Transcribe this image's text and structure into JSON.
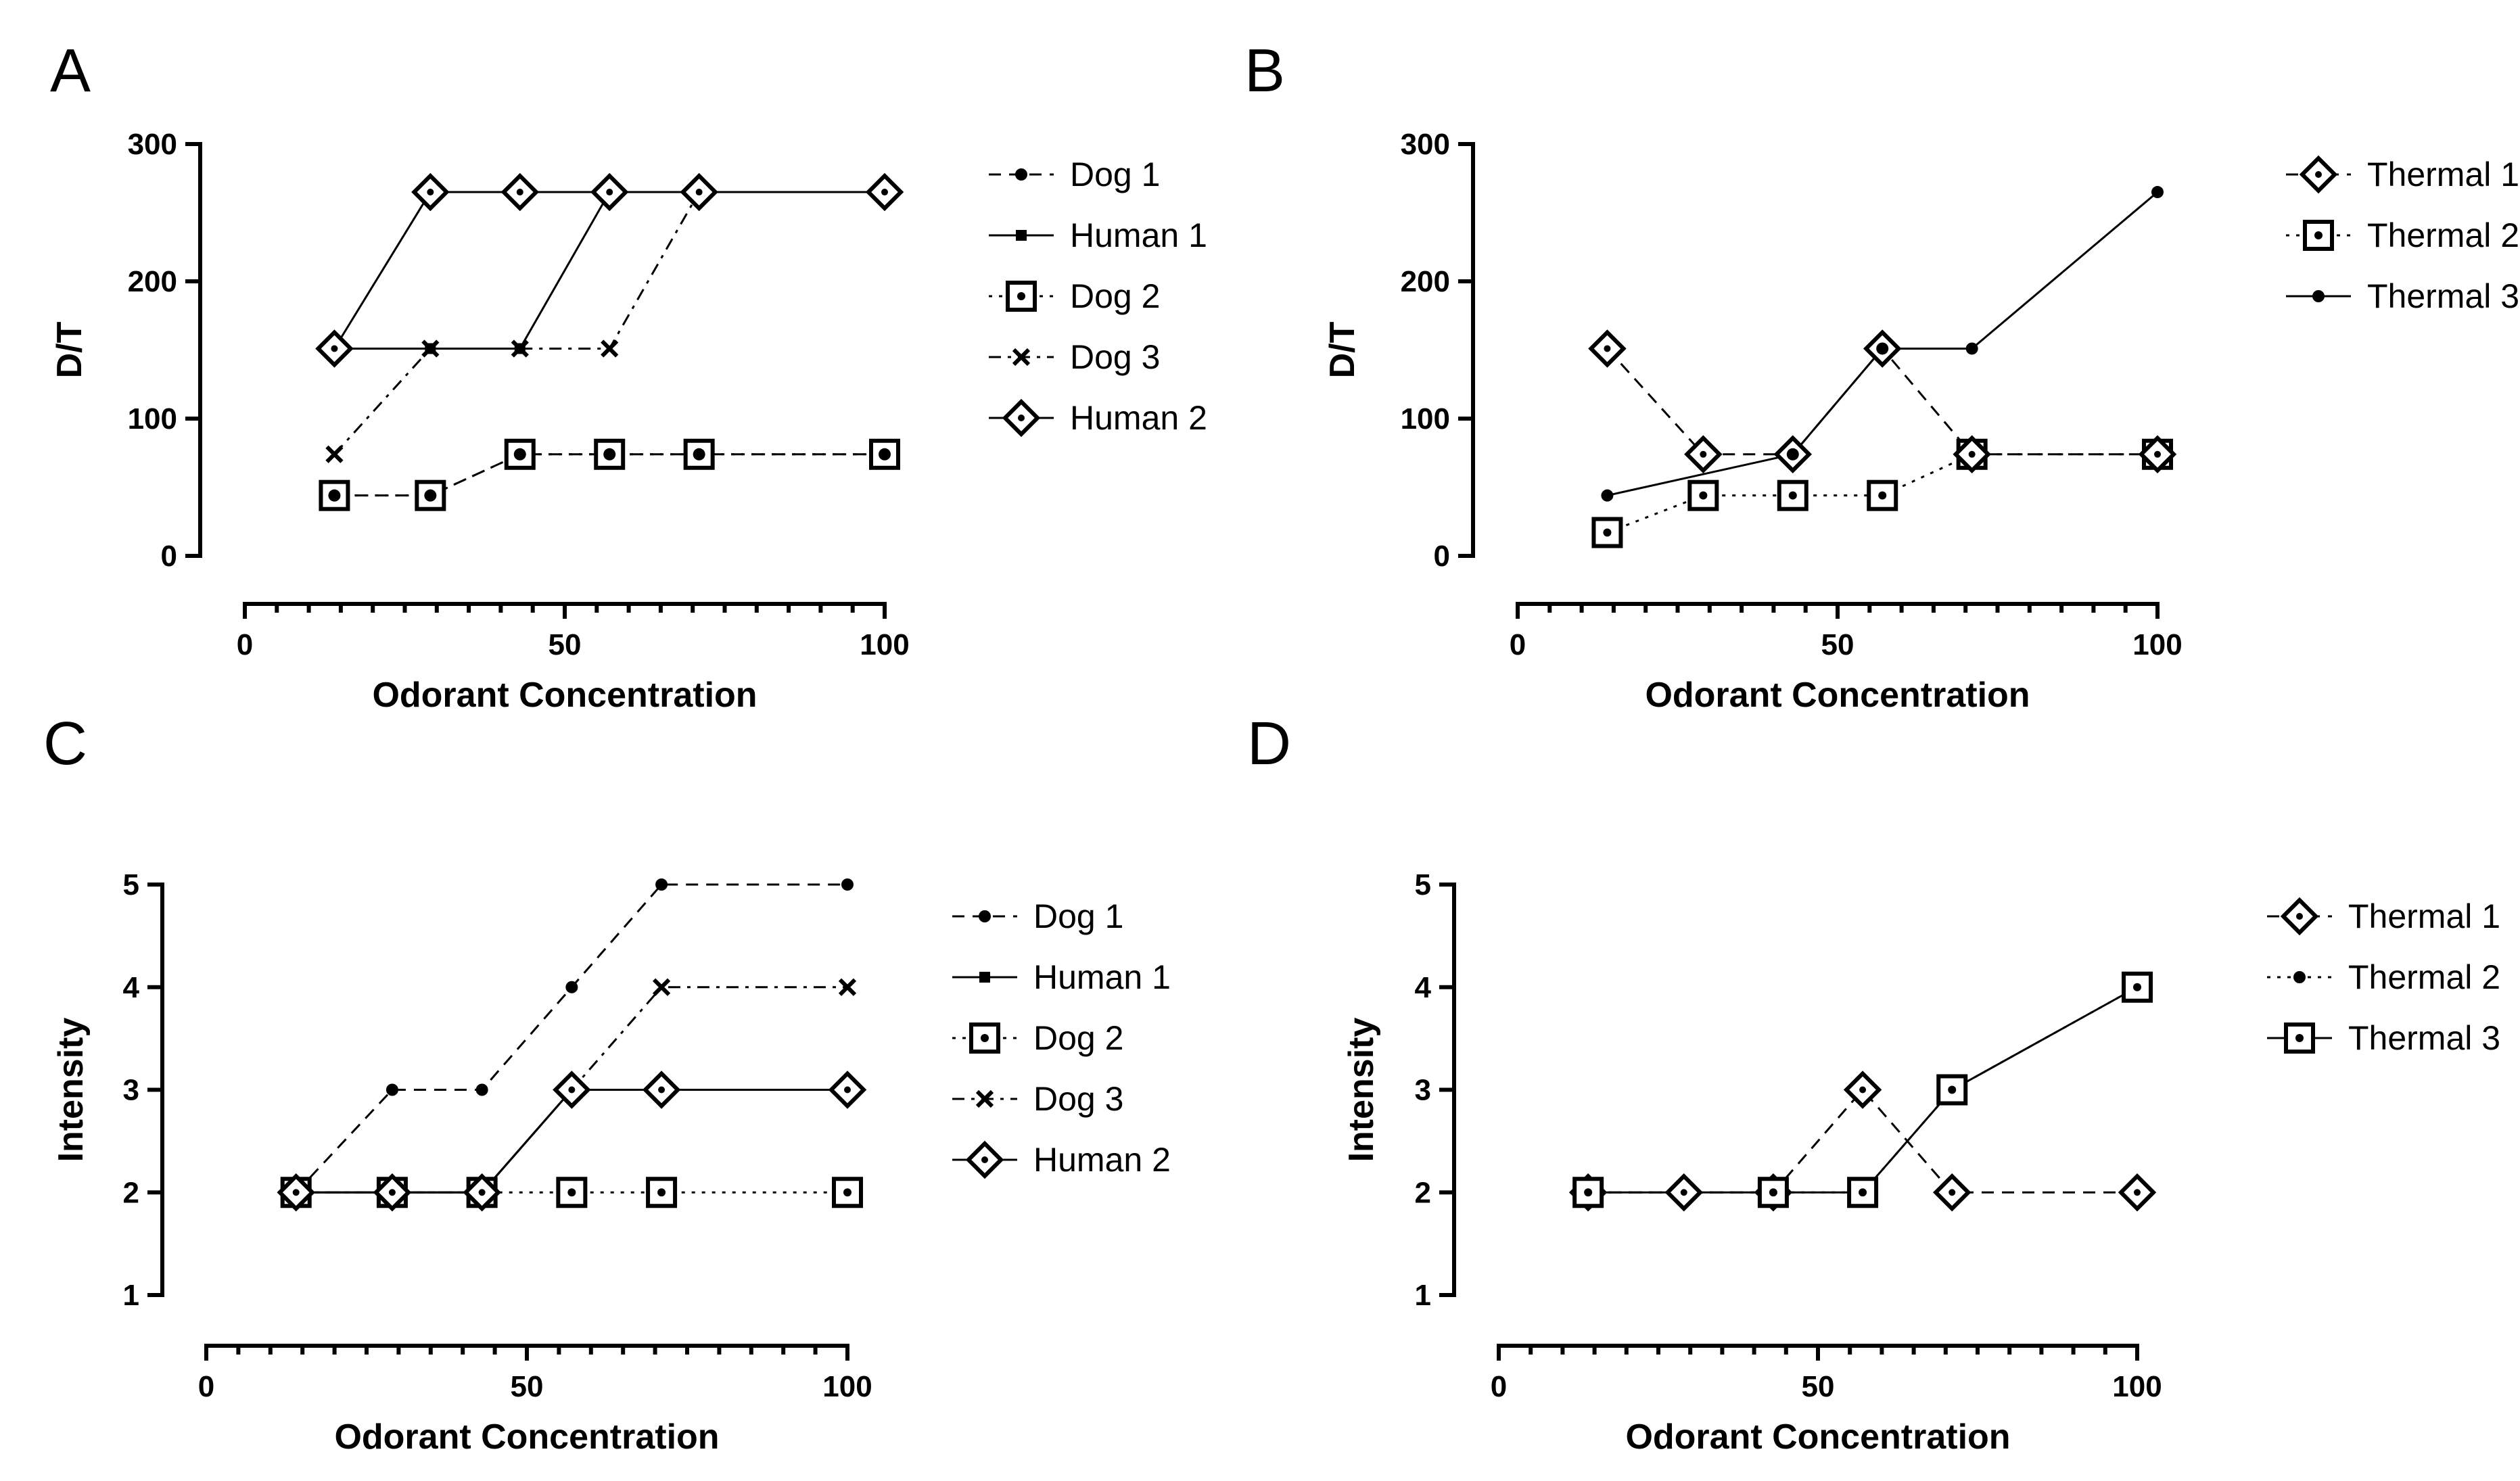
{
  "chart_data": [
    {
      "panel": "A",
      "type": "line",
      "xlabel": "Odorant Concentration",
      "ylabel": "D/T",
      "xlim": [
        0,
        100
      ],
      "ylim": [
        0,
        300
      ],
      "xticks": [
        0,
        50,
        100
      ],
      "yticks": [
        0,
        100,
        200,
        300
      ],
      "legend_position": "right",
      "series": [
        {
          "name": "Dog 1",
          "marker": "dot",
          "line": "dashed",
          "x": [
            14,
            29,
            43,
            57,
            71,
            100
          ],
          "y": [
            44,
            44,
            74,
            74,
            74,
            74
          ]
        },
        {
          "name": "Human 1",
          "marker": "small-square",
          "line": "solid",
          "x": [
            14,
            29,
            43,
            57,
            71,
            100
          ],
          "y": [
            151,
            151,
            151,
            265,
            265,
            265
          ]
        },
        {
          "name": "Dog 2",
          "marker": "open-square",
          "line": "dotted",
          "x": [
            14,
            29,
            43,
            57,
            71,
            100
          ],
          "y": [
            44,
            44,
            74,
            74,
            74,
            74
          ]
        },
        {
          "name": "Dog 3",
          "marker": "x",
          "line": "dashdot",
          "x": [
            14,
            29,
            43,
            57,
            71,
            100
          ],
          "y": [
            74,
            151,
            151,
            151,
            265,
            265
          ]
        },
        {
          "name": "Human 2",
          "marker": "open-diamond",
          "line": "solid",
          "x": [
            14,
            29,
            43,
            57,
            71,
            100
          ],
          "y": [
            151,
            265,
            265,
            265,
            265,
            265
          ]
        }
      ]
    },
    {
      "panel": "B",
      "type": "line",
      "xlabel": "Odorant Concentration",
      "ylabel": "D/T",
      "xlim": [
        0,
        100
      ],
      "ylim": [
        0,
        300
      ],
      "xticks": [
        0,
        50,
        100
      ],
      "yticks": [
        0,
        100,
        200,
        300
      ],
      "legend_position": "right",
      "series": [
        {
          "name": "Thermal 1",
          "marker": "open-diamond",
          "line": "dashed",
          "x": [
            14,
            29,
            43,
            57,
            71,
            100
          ],
          "y": [
            151,
            74,
            74,
            151,
            74,
            74
          ]
        },
        {
          "name": "Thermal 2",
          "marker": "open-square",
          "line": "dotted",
          "x": [
            14,
            29,
            43,
            57,
            71,
            100
          ],
          "y": [
            17,
            44,
            44,
            44,
            74,
            74
          ]
        },
        {
          "name": "Thermal 3",
          "marker": "dot",
          "line": "solid",
          "x": [
            14,
            43,
            57,
            71,
            100
          ],
          "y": [
            44,
            74,
            151,
            151,
            265
          ]
        }
      ]
    },
    {
      "panel": "C",
      "type": "line",
      "xlabel": "Odorant Concentration",
      "ylabel": "Intensity",
      "xlim": [
        0,
        100
      ],
      "ylim": [
        1,
        5
      ],
      "xticks": [
        0,
        50,
        100
      ],
      "yticks": [
        1,
        2,
        3,
        4,
        5
      ],
      "legend_position": "right",
      "series": [
        {
          "name": "Dog 1",
          "marker": "dot",
          "line": "dashed",
          "x": [
            14,
            29,
            43,
            57,
            71,
            100
          ],
          "y": [
            2,
            3,
            3,
            4,
            5,
            5
          ]
        },
        {
          "name": "Human 1",
          "marker": "small-square",
          "line": "solid",
          "x": [
            14,
            29,
            43,
            57,
            71,
            100
          ],
          "y": [
            2,
            2,
            2,
            3,
            3,
            3
          ]
        },
        {
          "name": "Dog 2",
          "marker": "open-square",
          "line": "dotted",
          "x": [
            14,
            29,
            43,
            57,
            71,
            100
          ],
          "y": [
            2,
            2,
            2,
            2,
            2,
            2
          ]
        },
        {
          "name": " Dog 3",
          "marker": "x",
          "line": "dashdot",
          "x": [
            14,
            29,
            43,
            57,
            71,
            100
          ],
          "y": [
            2,
            2,
            2,
            3,
            4,
            4
          ]
        },
        {
          "name": "Human 2",
          "marker": "open-diamond",
          "line": "solid",
          "x": [
            14,
            29,
            43,
            57,
            71,
            100
          ],
          "y": [
            2,
            2,
            2,
            3,
            3,
            3
          ]
        }
      ]
    },
    {
      "panel": "D",
      "type": "line",
      "xlabel": "Odorant Concentration",
      "ylabel": "Intensity",
      "xlim": [
        0,
        100
      ],
      "ylim": [
        1,
        5
      ],
      "xticks": [
        0,
        50,
        100
      ],
      "yticks": [
        1,
        2,
        3,
        4,
        5
      ],
      "legend_position": "right",
      "series": [
        {
          "name": "Thermal 1",
          "marker": "open-diamond",
          "line": "dashed",
          "x": [
            14,
            29,
            43,
            57,
            71,
            100
          ],
          "y": [
            2,
            2,
            2,
            3,
            2,
            2
          ]
        },
        {
          "name": "Thermal 2",
          "marker": "dot",
          "line": "dotted",
          "x": [
            14,
            43,
            57,
            71,
            100
          ],
          "y": [
            2,
            2,
            2,
            3,
            4
          ]
        },
        {
          "name": "Thermal 3",
          "marker": "open-square",
          "line": "solid",
          "x": [
            14,
            43,
            57,
            71,
            100
          ],
          "y": [
            2,
            2,
            2,
            3,
            4
          ]
        }
      ]
    }
  ]
}
